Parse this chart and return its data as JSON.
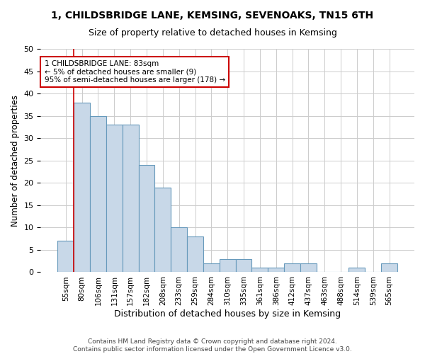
{
  "title": "1, CHILDSBRIDGE LANE, KEMSING, SEVENOAKS, TN15 6TH",
  "subtitle": "Size of property relative to detached houses in Kemsing",
  "xlabel": "Distribution of detached houses by size in Kemsing",
  "ylabel": "Number of detached properties",
  "bar_values": [
    7,
    38,
    35,
    33,
    33,
    24,
    19,
    10,
    8,
    2,
    3,
    3,
    1,
    1,
    2,
    2,
    0,
    0,
    1,
    0,
    2
  ],
  "bin_labels": [
    "55sqm",
    "80sqm",
    "106sqm",
    "131sqm",
    "157sqm",
    "182sqm",
    "208sqm",
    "233sqm",
    "259sqm",
    "284sqm",
    "310sqm",
    "335sqm",
    "361sqm",
    "386sqm",
    "412sqm",
    "437sqm",
    "463sqm",
    "488sqm",
    "514sqm",
    "539sqm",
    "565sqm"
  ],
  "bar_color": "#c8d8e8",
  "bar_edge_color": "#6699bb",
  "grid_color": "#cccccc",
  "annotation_box_color": "#cc0000",
  "ref_line_color": "#cc0000",
  "ref_line_x": 0.5,
  "annotation_text": "1 CHILDSBRIDGE LANE: 83sqm\n← 5% of detached houses are smaller (9)\n95% of semi-detached houses are larger (178) →",
  "footer_text": "Contains HM Land Registry data © Crown copyright and database right 2024.\nContains public sector information licensed under the Open Government Licence v3.0.",
  "ylim": [
    0,
    50
  ],
  "yticks": [
    0,
    5,
    10,
    15,
    20,
    25,
    30,
    35,
    40,
    45,
    50
  ],
  "figsize": [
    6.0,
    5.0
  ],
  "dpi": 100
}
